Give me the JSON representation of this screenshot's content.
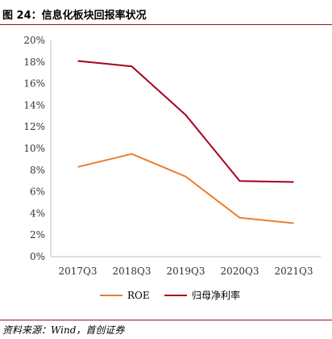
{
  "figure": {
    "title": "图 24：信息化板块回报率状况",
    "source": "资料来源：Wind，首创证券"
  },
  "chart_data": {
    "type": "line",
    "categories": [
      "2017Q3",
      "2018Q3",
      "2019Q3",
      "2020Q3",
      "2021Q3"
    ],
    "y_ticks": [
      "0%",
      "2%",
      "4%",
      "6%",
      "8%",
      "10%",
      "12%",
      "14%",
      "16%",
      "18%",
      "20%"
    ],
    "ylim": [
      0,
      20
    ],
    "grid": false,
    "legend_position": "bottom",
    "series": [
      {
        "name": "ROE",
        "color": "#ED7D31",
        "values": [
          8.3,
          9.5,
          7.4,
          3.6,
          3.1
        ]
      },
      {
        "name": "归母净利率",
        "color": "#A50021",
        "values": [
          18.1,
          17.6,
          13.1,
          7.0,
          6.9
        ]
      }
    ]
  }
}
